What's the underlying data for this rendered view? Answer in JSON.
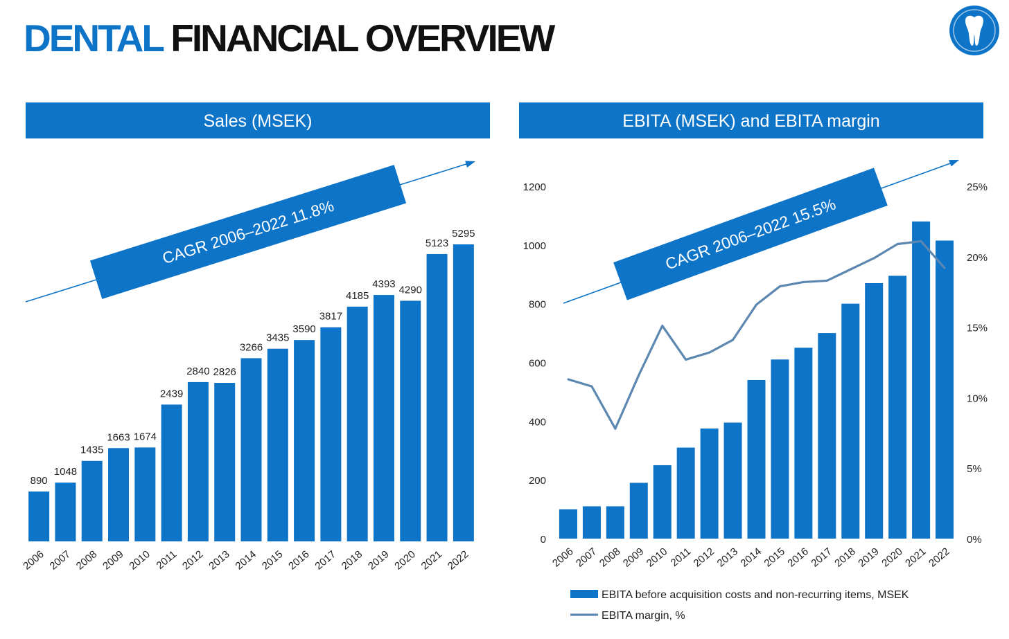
{
  "header": {
    "title_accent": "DENTAL",
    "title_main": "FINANCIAL OVERVIEW",
    "logo_icon": "tooth-icon"
  },
  "colors": {
    "brand_blue": "#0E74C8",
    "line_gray_blue": "#5B87B0"
  },
  "chart_data": [
    {
      "type": "bar",
      "title": "Sales (MSEK)",
      "categories": [
        "2006",
        "2007",
        "2008",
        "2009",
        "2010",
        "2011",
        "2012",
        "2013",
        "2014",
        "2015",
        "2016",
        "2017",
        "2018",
        "2019",
        "2020",
        "2021",
        "2022"
      ],
      "values": [
        890,
        1048,
        1435,
        1663,
        1674,
        2439,
        2840,
        2826,
        3266,
        3435,
        3590,
        3817,
        4185,
        4393,
        4290,
        5123,
        5295
      ],
      "annotation": "CAGR 2006–2022 11.8%",
      "ylim": [
        0,
        5295
      ]
    },
    {
      "type": "bar",
      "title": "EBITA (MSEK) and EBITA margin",
      "categories": [
        "2006",
        "2007",
        "2008",
        "2009",
        "2010",
        "2011",
        "2012",
        "2013",
        "2014",
        "2015",
        "2016",
        "2017",
        "2018",
        "2019",
        "2020",
        "2021",
        "2022"
      ],
      "series": [
        {
          "name": "EBITA before acquisition costs and non-recurring items, MSEK",
          "type": "bar",
          "axis": "left",
          "values": [
            100,
            110,
            110,
            190,
            250,
            310,
            375,
            395,
            540,
            610,
            650,
            700,
            800,
            870,
            895,
            1080,
            1015
          ]
        },
        {
          "name": "EBITA margin, %",
          "type": "line",
          "axis": "right",
          "values": [
            11.3,
            10.8,
            7.8,
            11.6,
            15.1,
            12.7,
            13.2,
            14.1,
            16.6,
            17.9,
            18.2,
            18.3,
            19.1,
            19.9,
            20.9,
            21.1,
            19.2
          ]
        }
      ],
      "annotation": "CAGR 2006–2022 15.5%",
      "y_left": {
        "ticks": [
          "0",
          "200",
          "400",
          "600",
          "800",
          "1000",
          "1200"
        ],
        "lim": [
          0,
          1200
        ]
      },
      "y_right": {
        "ticks": [
          "0%",
          "5%",
          "10%",
          "15%",
          "20%",
          "25%"
        ],
        "lim": [
          0,
          25
        ]
      },
      "legend_position": "bottom"
    }
  ]
}
